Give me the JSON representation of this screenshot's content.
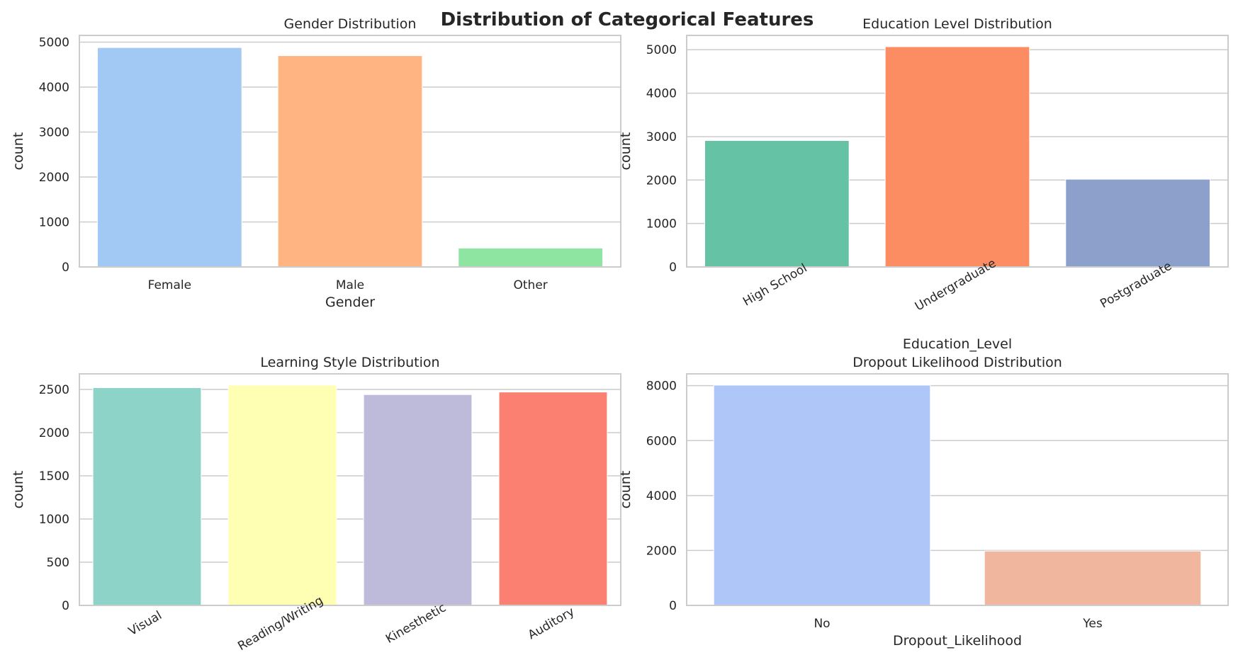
{
  "figure": {
    "title": "Distribution of Categorical Features"
  },
  "chart_data": [
    {
      "type": "bar",
      "title": "Gender Distribution",
      "xlabel": "Gender",
      "ylabel": "count",
      "categories": [
        "Female",
        "Male",
        "Other"
      ],
      "values": [
        4880,
        4700,
        420
      ],
      "colors": [
        "#a1c9f4",
        "#ffb482",
        "#8de5a1"
      ],
      "ylim": [
        0,
        5150
      ],
      "yticks": [
        0,
        1000,
        2000,
        3000,
        4000,
        5000
      ],
      "xtick_rotation": 0,
      "grid": true
    },
    {
      "type": "bar",
      "title": "Education Level Distribution",
      "xlabel": "Education_Level",
      "ylabel": "count",
      "categories": [
        "High School",
        "Undergraduate",
        "Postgraduate"
      ],
      "values": [
        2910,
        5070,
        2020
      ],
      "colors": [
        "#66c2a5",
        "#fc8d62",
        "#8da0cb"
      ],
      "ylim": [
        0,
        5330
      ],
      "yticks": [
        0,
        1000,
        2000,
        3000,
        4000,
        5000
      ],
      "xtick_rotation": -30,
      "grid": true
    },
    {
      "type": "bar",
      "title": "Learning Style Distribution",
      "xlabel": "",
      "ylabel": "count",
      "categories": [
        "Visual",
        "Reading/Writing",
        "Kinesthetic",
        "Auditory"
      ],
      "values": [
        2520,
        2550,
        2440,
        2470
      ],
      "colors": [
        "#8dd3c7",
        "#ffffb3",
        "#bebada",
        "#fb8072"
      ],
      "ylim": [
        0,
        2680
      ],
      "yticks": [
        0,
        500,
        1000,
        1500,
        2000,
        2500
      ],
      "xtick_rotation": -30,
      "grid": true
    },
    {
      "type": "bar",
      "title": "Dropout Likelihood Distribution",
      "xlabel": "Dropout_Likelihood",
      "ylabel": "count",
      "categories": [
        "No",
        "Yes"
      ],
      "values": [
        8020,
        1980
      ],
      "colors": [
        "#aec7f8",
        "#f0b79e"
      ],
      "ylim": [
        0,
        8430
      ],
      "yticks": [
        0,
        2000,
        4000,
        6000,
        8000
      ],
      "xtick_rotation": 0,
      "grid": true
    }
  ]
}
